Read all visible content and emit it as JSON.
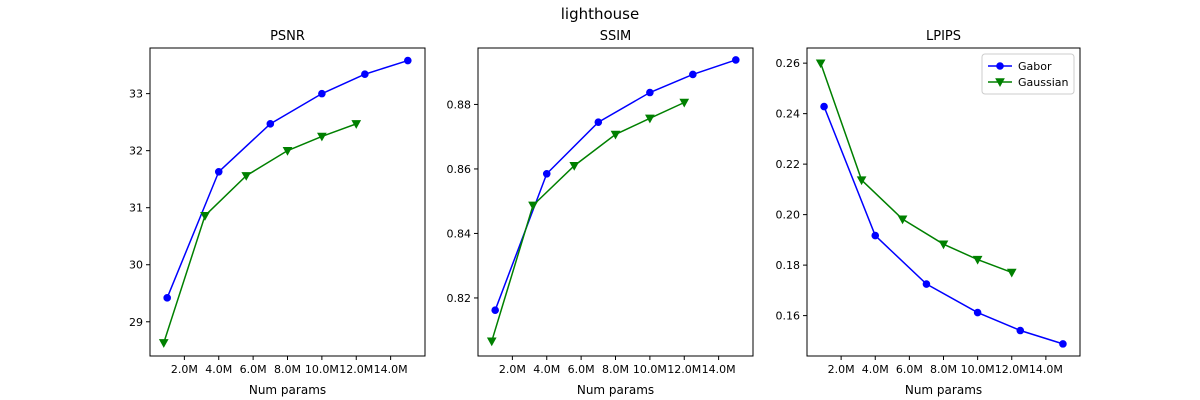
{
  "figure": {
    "title": "lighthouse"
  },
  "chart_data": [
    {
      "type": "line",
      "title": "PSNR",
      "xlabel": "Num params",
      "ylabel": "",
      "xlim": [
        0.0,
        16.0
      ],
      "ylim": [
        28.4,
        33.8
      ],
      "x_ticks": [
        2,
        4,
        6,
        8,
        10,
        12,
        14
      ],
      "x_tick_labels": [
        "2.0M",
        "4.0M",
        "6.0M",
        "8.0M",
        "10.0M",
        "12.0M",
        "14.0M"
      ],
      "y_ticks": [
        29,
        30,
        31,
        32,
        33
      ],
      "y_tick_labels": [
        "29",
        "30",
        "31",
        "32",
        "33"
      ],
      "grid": false,
      "legend": null,
      "series": [
        {
          "name": "Gabor",
          "color": "#0000ff",
          "marker": "circle",
          "x": [
            1.0,
            4.0,
            7.0,
            10.0,
            12.5,
            15.0
          ],
          "y": [
            29.42,
            31.63,
            32.47,
            33.0,
            33.34,
            33.58
          ]
        },
        {
          "name": "Gaussian",
          "color": "#008000",
          "marker": "triangle-down",
          "x": [
            0.8,
            3.2,
            5.6,
            8.0,
            10.0,
            12.0
          ],
          "y": [
            28.63,
            30.86,
            31.56,
            32.0,
            32.25,
            32.47
          ]
        }
      ]
    },
    {
      "type": "line",
      "title": "SSIM",
      "xlabel": "Num params",
      "ylabel": "",
      "xlim": [
        0.0,
        16.0
      ],
      "ylim": [
        0.802,
        0.8975
      ],
      "x_ticks": [
        2,
        4,
        6,
        8,
        10,
        12,
        14
      ],
      "x_tick_labels": [
        "2.0M",
        "4.0M",
        "6.0M",
        "8.0M",
        "10.0M",
        "12.0M",
        "14.0M"
      ],
      "y_ticks": [
        0.82,
        0.84,
        0.86,
        0.88
      ],
      "y_tick_labels": [
        "0.82",
        "0.84",
        "0.86",
        "0.88"
      ],
      "grid": false,
      "legend": null,
      "series": [
        {
          "name": "Gabor",
          "color": "#0000ff",
          "marker": "circle",
          "x": [
            1.0,
            4.0,
            7.0,
            10.0,
            12.5,
            15.0
          ],
          "y": [
            0.8162,
            0.8585,
            0.8745,
            0.8837,
            0.8893,
            0.8938
          ]
        },
        {
          "name": "Gaussian",
          "color": "#008000",
          "marker": "triangle-down",
          "x": [
            0.8,
            3.2,
            5.6,
            8.0,
            10.0,
            12.0
          ],
          "y": [
            0.8066,
            0.8487,
            0.861,
            0.8707,
            0.8757,
            0.8806
          ]
        }
      ]
    },
    {
      "type": "line",
      "title": "LPIPS",
      "xlabel": "Num params",
      "ylabel": "",
      "xlim": [
        0.0,
        16.0
      ],
      "ylim": [
        0.144,
        0.266
      ],
      "x_ticks": [
        2,
        4,
        6,
        8,
        10,
        12,
        14
      ],
      "x_tick_labels": [
        "2.0M",
        "4.0M",
        "6.0M",
        "8.0M",
        "10.0M",
        "12.0M",
        "14.0M"
      ],
      "y_ticks": [
        0.16,
        0.18,
        0.2,
        0.22,
        0.24,
        0.26
      ],
      "y_tick_labels": [
        "0.16",
        "0.18",
        "0.20",
        "0.22",
        "0.24",
        "0.26"
      ],
      "grid": false,
      "legend": "upper right",
      "series": [
        {
          "name": "Gabor",
          "color": "#0000ff",
          "marker": "circle",
          "x": [
            1.0,
            4.0,
            7.0,
            10.0,
            12.5,
            15.0
          ],
          "y": [
            0.2428,
            0.1917,
            0.1725,
            0.1612,
            0.1541,
            0.1488
          ]
        },
        {
          "name": "Gaussian",
          "color": "#008000",
          "marker": "triangle-down",
          "x": [
            0.8,
            3.2,
            5.6,
            8.0,
            10.0,
            12.0
          ],
          "y": [
            0.26,
            0.2137,
            0.1982,
            0.1883,
            0.1822,
            0.1771
          ]
        }
      ]
    }
  ]
}
